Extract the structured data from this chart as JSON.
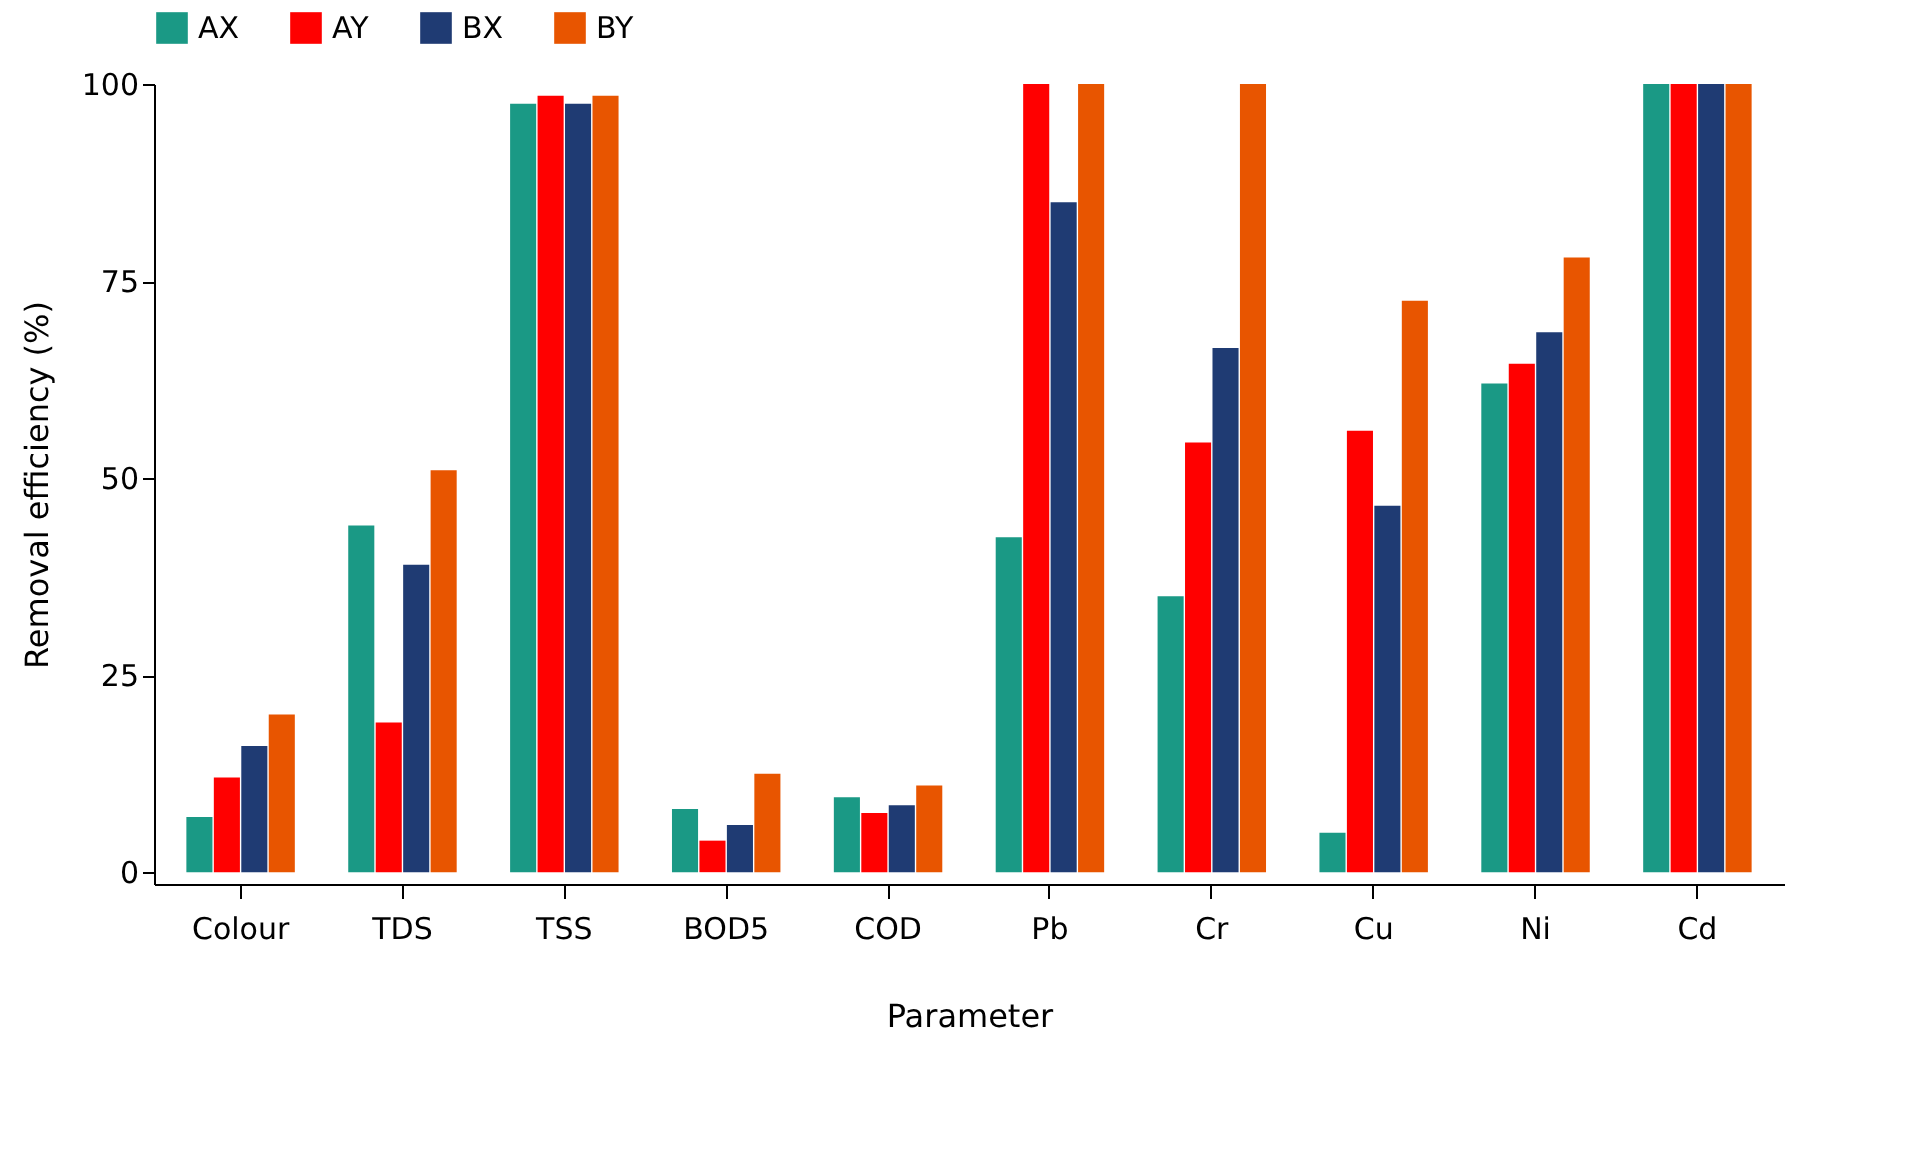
{
  "chart_data": {
    "type": "bar",
    "xlabel": "Parameter",
    "ylabel": "Removal efficiency (%)",
    "categories": [
      "Colour",
      "TDS",
      "TSS",
      "BOD5",
      "COD",
      "Pb",
      "Cr",
      "Cu",
      "Ni",
      "Cd"
    ],
    "series": [
      {
        "name": "AX",
        "color": "#1a9985",
        "values": [
          7,
          44,
          97.5,
          8,
          9.5,
          42.5,
          35,
          5,
          62,
          100
        ]
      },
      {
        "name": "AY",
        "color": "#ff0000",
        "values": [
          12,
          19,
          98.5,
          4,
          7.5,
          100,
          54.5,
          56,
          64.5,
          100
        ]
      },
      {
        "name": "BX",
        "color": "#1f3b73",
        "values": [
          16,
          39,
          97.5,
          6,
          8.5,
          85,
          66.5,
          46.5,
          68.5,
          100
        ]
      },
      {
        "name": "BY",
        "color": "#e85500",
        "values": [
          20,
          51,
          98.5,
          12.5,
          11,
          100,
          100,
          72.5,
          78,
          100
        ]
      }
    ],
    "ylim": [
      -1.5,
      100
    ],
    "yticks": [
      0,
      25,
      50,
      75,
      100
    ],
    "grid": false,
    "legend": "top"
  }
}
